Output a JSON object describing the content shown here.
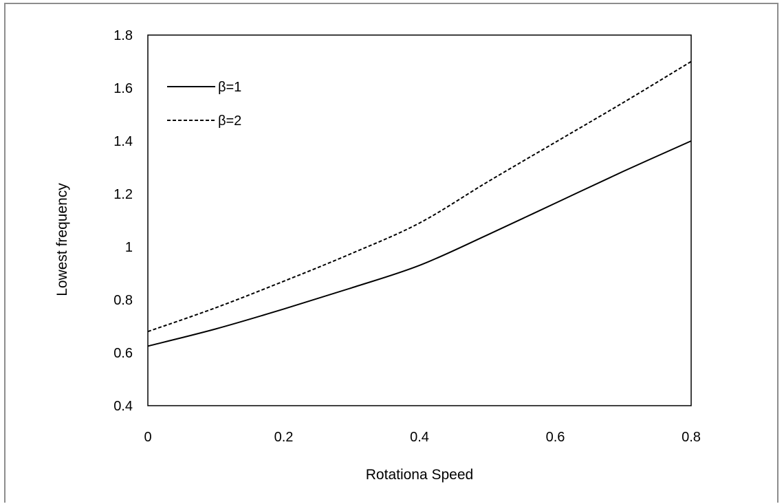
{
  "chart_data": {
    "type": "line",
    "title": "",
    "xlabel": "Rotationa Speed",
    "ylabel": "Lowest frequency",
    "xlim": [
      0,
      0.8
    ],
    "ylim": [
      0.4,
      1.8
    ],
    "x_ticks": [
      "0",
      "0.2",
      "0.4",
      "0.6",
      "0.8"
    ],
    "y_ticks": [
      "0.4",
      "0.6",
      "0.8",
      "1",
      "1.2",
      "1.4",
      "1.6",
      "1.8"
    ],
    "grid": false,
    "legend_position": "top-left",
    "series": [
      {
        "name": "β=1",
        "style": "solid",
        "color": "#000000",
        "x": [
          0,
          0.1,
          0.2,
          0.3,
          0.4,
          0.5,
          0.6,
          0.7,
          0.8
        ],
        "y": [
          0.625,
          0.69,
          0.765,
          0.845,
          0.93,
          1.045,
          1.165,
          1.285,
          1.4
        ]
      },
      {
        "name": "β=2",
        "style": "dashed",
        "color": "#000000",
        "x": [
          0,
          0.1,
          0.2,
          0.3,
          0.4,
          0.5,
          0.6,
          0.7,
          0.8
        ],
        "y": [
          0.68,
          0.77,
          0.87,
          0.975,
          1.09,
          1.245,
          1.395,
          1.545,
          1.7
        ]
      }
    ]
  }
}
